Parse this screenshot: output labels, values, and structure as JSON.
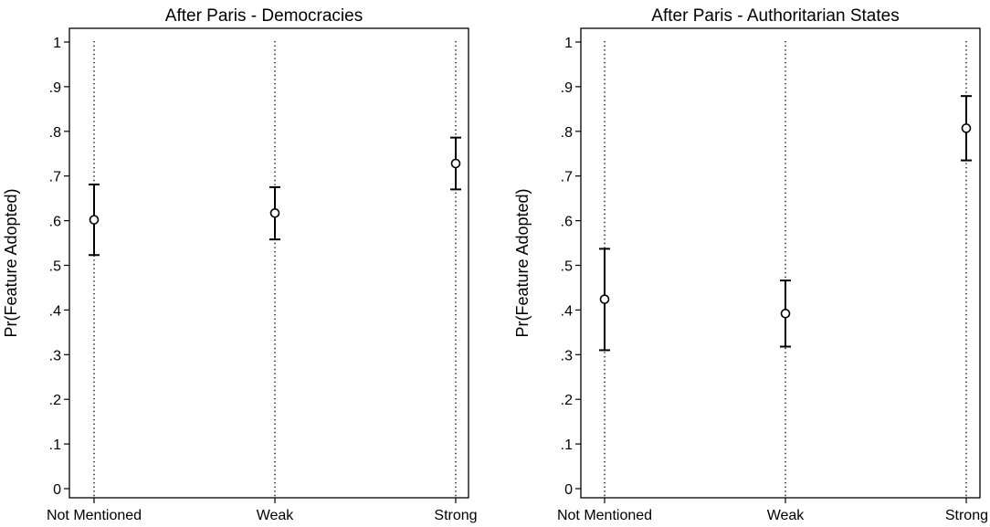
{
  "chart_data": [
    {
      "type": "scatter",
      "title": "After Paris - Democracies",
      "xlabel": "",
      "ylabel": "Pr(Feature Adopted)",
      "categories": [
        "Not Mentioned",
        "Weak",
        "Strong"
      ],
      "ylim": [
        0,
        1
      ],
      "yticks": [
        0,
        0.1,
        0.2,
        0.3,
        0.4,
        0.5,
        0.6,
        0.7,
        0.8,
        0.9,
        1
      ],
      "ytick_labels": [
        "0",
        ".1",
        ".2",
        ".3",
        ".4",
        ".5",
        ".6",
        ".7",
        ".8",
        ".9",
        "1"
      ],
      "grid": "vertical dotted lines at categories",
      "series": [
        {
          "values": [
            0.602,
            0.617,
            0.728
          ],
          "lower": [
            0.523,
            0.558,
            0.67
          ],
          "upper": [
            0.681,
            0.675,
            0.786
          ]
        }
      ]
    },
    {
      "type": "scatter",
      "title": "After Paris - Authoritarian States",
      "xlabel": "",
      "ylabel": "Pr(Feature Adopted)",
      "categories": [
        "Not Mentioned",
        "Weak",
        "Strong"
      ],
      "ylim": [
        0,
        1
      ],
      "yticks": [
        0,
        0.1,
        0.2,
        0.3,
        0.4,
        0.5,
        0.6,
        0.7,
        0.8,
        0.9,
        1
      ],
      "ytick_labels": [
        "0",
        ".1",
        ".2",
        ".3",
        ".4",
        ".5",
        ".6",
        ".7",
        ".8",
        ".9",
        "1"
      ],
      "grid": "vertical dotted lines at categories",
      "series": [
        {
          "values": [
            0.424,
            0.392,
            0.807
          ],
          "lower": [
            0.31,
            0.318,
            0.735
          ],
          "upper": [
            0.537,
            0.466,
            0.879
          ]
        }
      ]
    }
  ]
}
